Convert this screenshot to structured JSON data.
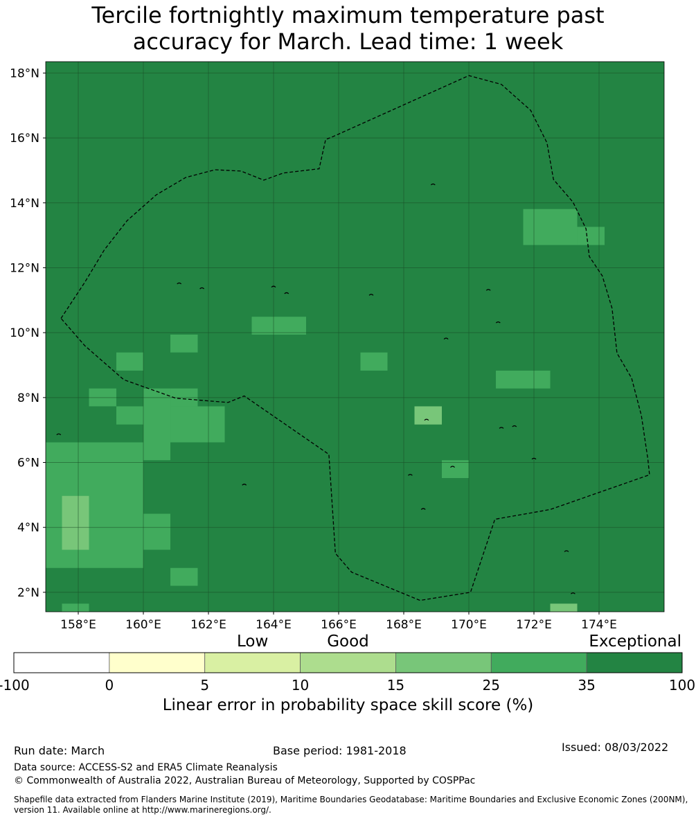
{
  "title": {
    "line1": "Tercile fortnightly maximum temperature past",
    "line2": "accuracy for March. Lead time: 1 week"
  },
  "map": {
    "lat_range": [
      1.4,
      18.35
    ],
    "lon_range": [
      157.0,
      176.0
    ],
    "lat_ticks": [
      {
        "value": 2,
        "label": "2°N"
      },
      {
        "value": 4,
        "label": "4°N"
      },
      {
        "value": 6,
        "label": "6°N"
      },
      {
        "value": 8,
        "label": "8°N"
      },
      {
        "value": 10,
        "label": "10°N"
      },
      {
        "value": 12,
        "label": "12°N"
      },
      {
        "value": 14,
        "label": "14°N"
      },
      {
        "value": 16,
        "label": "16°N"
      },
      {
        "value": 18,
        "label": "18°N"
      }
    ],
    "lon_ticks": [
      {
        "value": 158,
        "label": "158°E"
      },
      {
        "value": 160,
        "label": "160°E"
      },
      {
        "value": 162,
        "label": "162°E"
      },
      {
        "value": 164,
        "label": "164°E"
      },
      {
        "value": 166,
        "label": "166°E"
      },
      {
        "value": 168,
        "label": "168°E"
      },
      {
        "value": 170,
        "label": "170°E"
      },
      {
        "value": 172,
        "label": "172°E"
      },
      {
        "value": 174,
        "label": "174°E"
      }
    ],
    "background_color": "#238443",
    "cells": [
      {
        "lon": [
          157.0,
          160.0
        ],
        "lat": [
          2.75,
          6.62
        ],
        "color": "#41ab5d"
      },
      {
        "lon": [
          157.5,
          158.33
        ],
        "lat": [
          3.31,
          4.97
        ],
        "color": "#78c679"
      },
      {
        "lon": [
          160.0,
          160.83
        ],
        "lat": [
          3.31,
          4.42
        ],
        "color": "#41ab5d"
      },
      {
        "lon": [
          160.0,
          160.83
        ],
        "lat": [
          6.07,
          8.28
        ],
        "color": "#41ab5d"
      },
      {
        "lon": [
          160.83,
          162.5
        ],
        "lat": [
          6.62,
          7.73
        ],
        "color": "#41ab5d"
      },
      {
        "lon": [
          160.83,
          161.67
        ],
        "lat": [
          7.73,
          8.28
        ],
        "color": "#41ab5d"
      },
      {
        "lon": [
          161.67,
          162.5
        ],
        "lat": [
          7.73,
          7.73
        ],
        "color": "#41ab5d"
      },
      {
        "lon": [
          159.17,
          160.0
        ],
        "lat": [
          7.17,
          7.73
        ],
        "color": "#41ab5d"
      },
      {
        "lon": [
          158.33,
          159.17
        ],
        "lat": [
          7.73,
          8.28
        ],
        "color": "#41ab5d"
      },
      {
        "lon": [
          159.17,
          160.0
        ],
        "lat": [
          8.83,
          9.39
        ],
        "color": "#41ab5d"
      },
      {
        "lon": [
          160.83,
          161.67
        ],
        "lat": [
          9.39,
          9.94
        ],
        "color": "#41ab5d"
      },
      {
        "lon": [
          163.33,
          165.0
        ],
        "lat": [
          9.94,
          10.49
        ],
        "color": "#41ab5d"
      },
      {
        "lon": [
          160.83,
          161.67
        ],
        "lat": [
          2.2,
          2.75
        ],
        "color": "#41ab5d"
      },
      {
        "lon": [
          157.5,
          158.33
        ],
        "lat": [
          1.4,
          1.65
        ],
        "color": "#41ab5d"
      },
      {
        "lon": [
          166.67,
          167.5
        ],
        "lat": [
          8.83,
          9.39
        ],
        "color": "#41ab5d"
      },
      {
        "lon": [
          168.33,
          169.17
        ],
        "lat": [
          7.17,
          7.73
        ],
        "color": "#78c679"
      },
      {
        "lon": [
          169.17,
          170.0
        ],
        "lat": [
          5.52,
          6.07
        ],
        "color": "#41ab5d"
      },
      {
        "lon": [
          170.83,
          172.5
        ],
        "lat": [
          8.28,
          8.83
        ],
        "color": "#41ab5d"
      },
      {
        "lon": [
          171.67,
          173.33
        ],
        "lat": [
          12.7,
          13.81
        ],
        "color": "#41ab5d"
      },
      {
        "lon": [
          173.33,
          174.17
        ],
        "lat": [
          12.7,
          13.26
        ],
        "color": "#41ab5d"
      },
      {
        "lon": [
          172.5,
          173.33
        ],
        "lat": [
          1.4,
          1.65
        ],
        "color": "#78c679"
      }
    ],
    "eez_boundary": [
      [
        157.47,
        10.44
      ],
      [
        158.2,
        11.55
      ],
      [
        158.8,
        12.55
      ],
      [
        159.5,
        13.45
      ],
      [
        160.4,
        14.25
      ],
      [
        161.3,
        14.78
      ],
      [
        162.2,
        15.02
      ],
      [
        163.0,
        14.98
      ],
      [
        163.7,
        14.7
      ],
      [
        164.3,
        14.92
      ],
      [
        165.4,
        15.05
      ],
      [
        165.6,
        15.95
      ],
      [
        165.85,
        16.05
      ],
      [
        170.0,
        17.92
      ],
      [
        171.0,
        17.65
      ],
      [
        171.9,
        16.85
      ],
      [
        172.4,
        15.85
      ],
      [
        172.6,
        14.72
      ],
      [
        173.2,
        14.02
      ],
      [
        173.6,
        13.2
      ],
      [
        173.7,
        12.35
      ],
      [
        174.1,
        11.75
      ],
      [
        174.4,
        10.75
      ],
      [
        174.55,
        9.37
      ],
      [
        175.0,
        8.6
      ],
      [
        175.3,
        7.45
      ],
      [
        175.5,
        6.1
      ],
      [
        175.55,
        5.62
      ],
      [
        172.5,
        4.55
      ],
      [
        170.8,
        4.25
      ],
      [
        170.05,
        2.0
      ],
      [
        168.5,
        1.75
      ],
      [
        166.4,
        2.62
      ],
      [
        165.9,
        3.2
      ],
      [
        165.7,
        6.25
      ],
      [
        163.1,
        8.05
      ],
      [
        162.6,
        7.85
      ],
      [
        161.0,
        7.98
      ],
      [
        159.4,
        8.55
      ],
      [
        158.2,
        9.6
      ],
      [
        157.47,
        10.44
      ]
    ],
    "islands": [
      [
        157.4,
        6.85
      ],
      [
        161.1,
        11.5
      ],
      [
        164.4,
        11.2
      ],
      [
        167.0,
        11.15
      ],
      [
        168.9,
        14.55
      ],
      [
        171.0,
        7.05
      ],
      [
        171.4,
        7.1
      ],
      [
        173.0,
        3.25
      ],
      [
        173.2,
        1.95
      ],
      [
        168.7,
        7.3
      ],
      [
        169.5,
        5.85
      ],
      [
        163.1,
        5.3
      ],
      [
        168.6,
        4.55
      ],
      [
        170.9,
        10.3
      ],
      [
        168.2,
        5.6
      ],
      [
        169.3,
        9.8
      ],
      [
        161.8,
        11.35
      ],
      [
        164.0,
        11.4
      ],
      [
        170.6,
        11.3
      ],
      [
        172.0,
        6.1
      ]
    ]
  },
  "colorbar": {
    "band_labels": [
      {
        "label": "Low",
        "position": 2.5
      },
      {
        "label": "Good",
        "position": 3.5
      },
      {
        "label": "Exceptional",
        "position": 6
      }
    ],
    "segments": [
      {
        "from": -100,
        "to": 0,
        "color": "#ffffff"
      },
      {
        "from": 0,
        "to": 5,
        "color": "#ffffcc"
      },
      {
        "from": 5,
        "to": 10,
        "color": "#d9f0a3"
      },
      {
        "from": 10,
        "to": 15,
        "color": "#addd8e"
      },
      {
        "from": 15,
        "to": 25,
        "color": "#78c679"
      },
      {
        "from": 25,
        "to": 35,
        "color": "#41ab5d"
      },
      {
        "from": 35,
        "to": 100,
        "color": "#238443"
      }
    ],
    "tick_labels": [
      "-100",
      "0",
      "5",
      "10",
      "15",
      "25",
      "35",
      "100"
    ],
    "label": "Linear error in probability space skill score (%)"
  },
  "footer": {
    "run_date": "Run date: March",
    "base_period": "Base period: 1981-2018",
    "issued": "Issued: 08/03/2022",
    "data_source": "Data source: ACCESS-S2 and ERA5 Climate Reanalysis",
    "copyright": "© Commonwealth of Australia 2022, Australian Bureau of Meteorology, Supported by COSPPac",
    "shapefile": "Shapefile data extracted from Flanders Marine Institute (2019), Maritime Boundaries Geodatabase: Maritime Boundaries and Exclusive Economic Zones (200NM), version 11. Available online at http://www.marineregions.org/."
  }
}
